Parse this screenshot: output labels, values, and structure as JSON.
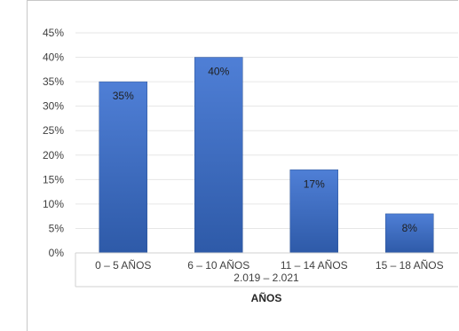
{
  "chart_data": {
    "type": "bar",
    "categories": [
      "0 – 5 AÑOS",
      "6 – 10 AÑOS",
      "11 – 14 AÑOS",
      "15 – 18 AÑOS"
    ],
    "values": [
      35,
      40,
      17,
      8
    ],
    "data_labels": [
      "35%",
      "40%",
      "17%",
      "8%"
    ],
    "y_ticks": [
      "0%",
      "5%",
      "10%",
      "15%",
      "20%",
      "25%",
      "30%",
      "35%",
      "40%",
      "45%"
    ],
    "ylim": [
      0,
      45
    ],
    "x_group_label": "2.019 – 2.021",
    "xlabel": "AÑOS",
    "ylabel": "",
    "title": "",
    "grid": true,
    "bar_color": "#4472c4",
    "bar_color_dark": "#2f5597"
  }
}
